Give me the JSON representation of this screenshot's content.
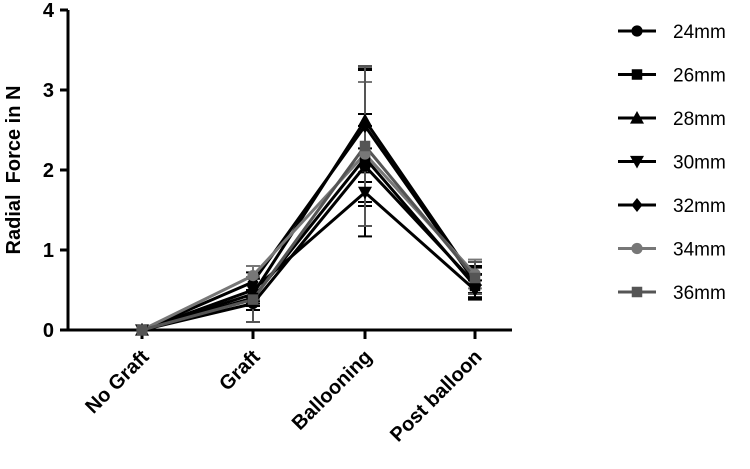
{
  "chart_data": {
    "type": "line",
    "title": "",
    "xlabel": "",
    "ylabel": "Radial  Force in N",
    "categories": [
      "No Graft",
      "Graft",
      "Ballooning",
      "Post balloon"
    ],
    "y_ticks": [
      "0",
      "1",
      "2",
      "3",
      "4"
    ],
    "ylim": [
      0,
      4
    ],
    "grid": false,
    "legend_position": "right",
    "series": [
      {
        "name": "24mm",
        "marker": "circle",
        "color": "#000000",
        "values": [
          0,
          0.33,
          2.05,
          0.58
        ],
        "error": [
          0,
          0.08,
          0.5,
          0.12
        ]
      },
      {
        "name": "26mm",
        "marker": "square",
        "color": "#000000",
        "values": [
          0,
          0.4,
          2.15,
          0.55
        ],
        "error": [
          0,
          0.1,
          0.55,
          0.14
        ]
      },
      {
        "name": "28mm",
        "marker": "triangle",
        "color": "#000000",
        "values": [
          0,
          0.45,
          2.62,
          0.62
        ],
        "error": [
          0,
          0.12,
          0.65,
          0.16
        ]
      },
      {
        "name": "30mm",
        "marker": "triangle-down",
        "color": "#000000",
        "values": [
          0,
          0.5,
          1.72,
          0.5
        ],
        "error": [
          0,
          0.14,
          0.55,
          0.12
        ]
      },
      {
        "name": "32mm",
        "marker": "diamond",
        "color": "#000000",
        "values": [
          0,
          0.6,
          2.55,
          0.6
        ],
        "error": [
          0,
          0.12,
          0.7,
          0.2
        ]
      },
      {
        "name": "34mm",
        "marker": "circle",
        "color": "#777777",
        "values": [
          0,
          0.68,
          2.2,
          0.7
        ],
        "error": [
          0,
          0.12,
          0.9,
          0.18
        ]
      },
      {
        "name": "36mm",
        "marker": "square",
        "color": "#555555",
        "values": [
          0,
          0.38,
          2.3,
          0.65
        ],
        "error": [
          0,
          0.28,
          1.0,
          0.2
        ]
      }
    ]
  }
}
